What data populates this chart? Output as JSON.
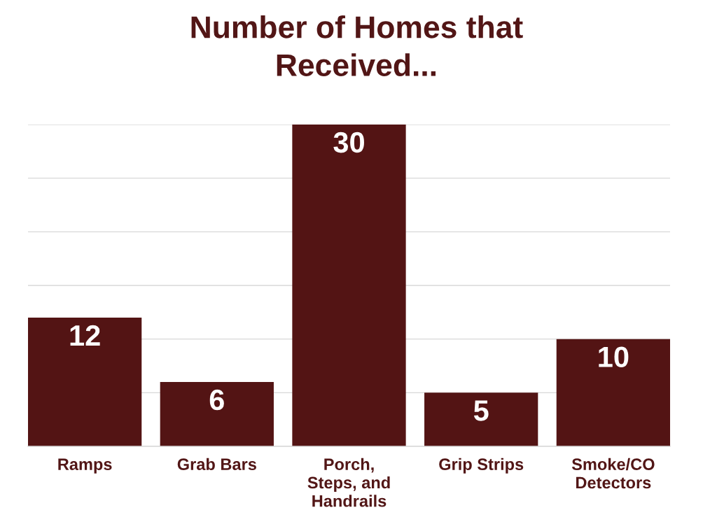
{
  "chart_data": {
    "type": "bar",
    "title": "Number of Homes that\nReceived...",
    "categories": [
      "Ramps",
      "Grab Bars",
      "Porch,\nSteps, and\nHandrails",
      "Grip Strips",
      "Smoke/CO\nDetectors"
    ],
    "values": [
      12,
      6,
      30,
      5,
      10
    ],
    "color": "#531414",
    "data_labels": true,
    "ylim": [
      0,
      30
    ],
    "yticks": [
      {
        "value": 0,
        "label": null
      },
      {
        "value": 5,
        "label": null
      },
      {
        "value": 10,
        "label": null
      },
      {
        "value": 15,
        "label": null
      },
      {
        "value": 20,
        "label": null
      },
      {
        "value": 25,
        "label": null
      },
      {
        "value": 30,
        "label": null
      }
    ],
    "grid": "y",
    "tick_labels": "x"
  }
}
